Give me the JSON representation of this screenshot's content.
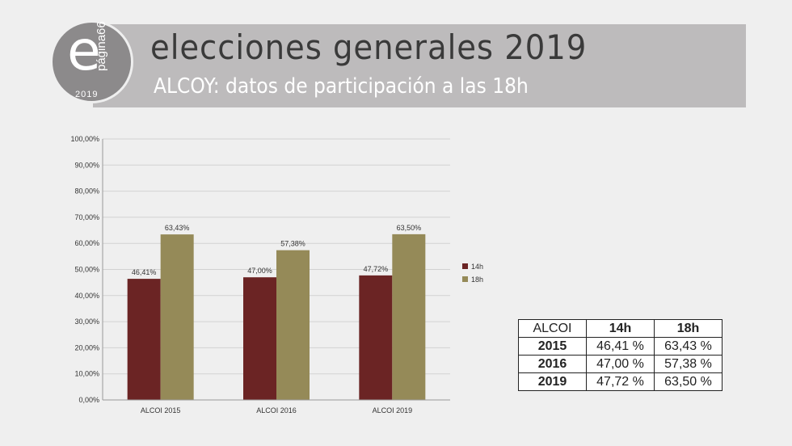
{
  "header": {
    "title": "elecciones generales 2019",
    "subtitle": "ALCOY: datos de participación a las 18h",
    "logo_letter": "e",
    "logo_text": "página66",
    "logo_year": "2019"
  },
  "chart_data": {
    "type": "bar",
    "categories": [
      "ALCOI 2015",
      "ALCOI 2016",
      "ALCOI 2019"
    ],
    "series": [
      {
        "name": "14h",
        "values": [
          46.41,
          47.0,
          47.72
        ],
        "labels": [
          "46,41%",
          "47,00%",
          "47,72%"
        ],
        "color": "#6b2424"
      },
      {
        "name": "18h",
        "values": [
          63.43,
          57.38,
          63.5
        ],
        "labels": [
          "63,43%",
          "57,38%",
          "63,50%"
        ],
        "color": "#958a58"
      }
    ],
    "yticks": [
      0,
      10,
      20,
      30,
      40,
      50,
      60,
      70,
      80,
      90,
      100
    ],
    "ytick_labels": [
      "0,00%",
      "10,00%",
      "20,00%",
      "30,00%",
      "40,00%",
      "50,00%",
      "60,00%",
      "70,00%",
      "80,00%",
      "90,00%",
      "100,00%"
    ],
    "ylim": [
      0,
      100
    ],
    "grid": true,
    "legend_position": "right"
  },
  "table": {
    "headers": [
      "ALCOI",
      "14h",
      "18h"
    ],
    "rows": [
      [
        "2015",
        "46,41 %",
        "63,43 %"
      ],
      [
        "2016",
        "47,00 %",
        "57,38 %"
      ],
      [
        "2019",
        "47,72 %",
        "63,50 %"
      ]
    ]
  }
}
